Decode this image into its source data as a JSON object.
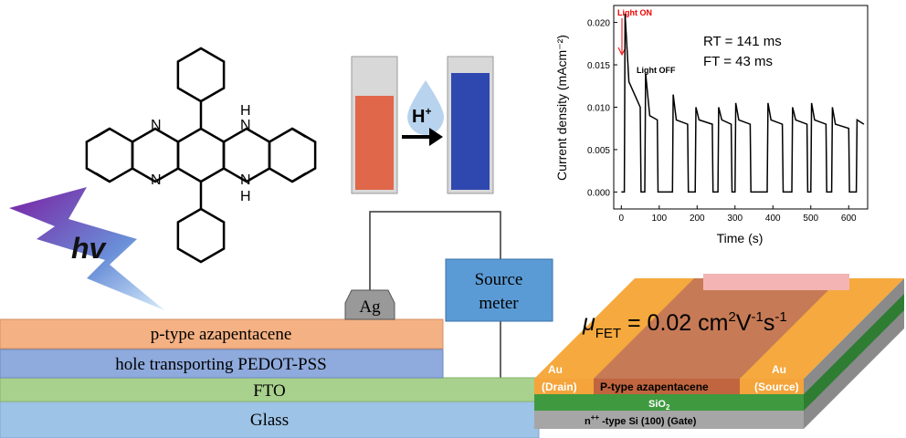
{
  "light": "hv",
  "molecule": {
    "atoms": [
      "N",
      "N",
      "N",
      "H",
      "N",
      "H"
    ]
  },
  "protonation": {
    "main": "H",
    "sup": "+"
  },
  "device": {
    "layers": [
      "p-type azapentacene",
      "hole transporting PEDOT-PSS",
      "FTO",
      "Glass"
    ],
    "electrode": "Ag",
    "meter": [
      "Source",
      "meter"
    ]
  },
  "fet": {
    "mobility": {
      "symbol": "μ",
      "sub": "FET",
      "a": " = 0.02 cm",
      "s1": "2",
      "b": "V",
      "s2": "-1",
      "c": "s",
      "s3": "-1"
    },
    "drain": [
      "Au",
      "(Drain)"
    ],
    "source": [
      "Au",
      "(Source)"
    ],
    "channel": "P-type azapentacene",
    "oxide": {
      "main": "SiO",
      "sub": "2"
    },
    "gate": {
      "main": "n",
      "sup": "++",
      "rest": " -type Si (100) (Gate)"
    }
  },
  "chart_data": {
    "type": "line",
    "color": "#000000",
    "xlabel": "Time (s)",
    "ylabel": "Current density (mAcm⁻²)",
    "annotations": {
      "on": "Light ON",
      "off": "Light OFF",
      "rt": "RT = 141 ms",
      "ft": "FT =  43 ms"
    },
    "x": [
      0,
      8,
      10,
      20,
      40,
      50,
      52,
      62,
      64,
      75,
      95,
      97,
      135,
      137,
      145,
      175,
      177,
      195,
      197,
      205,
      240,
      242,
      255,
      257,
      265,
      290,
      292,
      300,
      302,
      310,
      340,
      342,
      385,
      387,
      395,
      425,
      427,
      450,
      452,
      460,
      490,
      492,
      500,
      502,
      510,
      540,
      542,
      555,
      557,
      565,
      600,
      602,
      620,
      622,
      640
    ],
    "values": [
      0,
      0,
      0.021,
      0.013,
      0.011,
      0.01,
      0,
      0,
      0.014,
      0.009,
      0.0085,
      0,
      0,
      0.0115,
      0.0085,
      0.008,
      0,
      0,
      0.01,
      0.0085,
      0.008,
      0,
      0,
      0.01,
      0.0085,
      0.008,
      0,
      0,
      0.0105,
      0.0085,
      0.008,
      0,
      0,
      0.0105,
      0.0085,
      0.008,
      0,
      0,
      0.01,
      0.0085,
      0.008,
      0,
      0,
      0.0105,
      0.0085,
      0.008,
      0,
      0,
      0.01,
      0.008,
      0.0075,
      0,
      0,
      0.0085,
      0.008
    ],
    "xlim": [
      -20,
      650
    ],
    "ylim": [
      -0.002,
      0.022
    ],
    "xticks": [
      0,
      100,
      200,
      300,
      400,
      500,
      600
    ],
    "yticks": [
      {
        "value": 0,
        "label": "0.000"
      },
      {
        "value": 0.005,
        "label": "0.005"
      },
      {
        "value": 0.01,
        "label": "0.010"
      },
      {
        "value": 0.015,
        "label": "0.015"
      },
      {
        "value": 0.02,
        "label": "0.020"
      }
    ]
  }
}
